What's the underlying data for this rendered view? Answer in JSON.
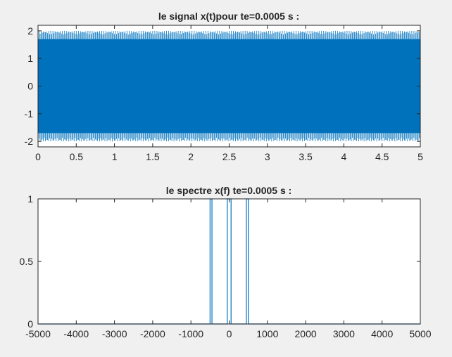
{
  "chart_data": [
    {
      "type": "line",
      "title": "le signal x(t)pour te=0.0005 s :",
      "xlabel": "",
      "ylabel": "",
      "xlim": [
        0,
        5
      ],
      "ylim": [
        -2.2,
        2.2
      ],
      "xticks": [
        "0",
        "0.5",
        "1",
        "1.5",
        "2",
        "2.5",
        "3",
        "3.5",
        "4",
        "4.5",
        "5"
      ],
      "yticks": [
        "-2",
        "-1",
        "0",
        "1",
        "2"
      ],
      "grid": false,
      "line_color": "#0072bd",
      "series": [
        {
          "note_values": "dense oscillation filling the band",
          "envelope_max": 2.0,
          "envelope_min": -2.0,
          "inner_max": 1.7,
          "inner_min": -1.7
        }
      ]
    },
    {
      "type": "line",
      "title": "le spectre x(f) te=0.0005 s :",
      "xlabel": "",
      "ylabel": "",
      "xlim": [
        -5000,
        5000
      ],
      "ylim": [
        0,
        1
      ],
      "xticks": [
        "-5000",
        "-4000",
        "-3000",
        "-2000",
        "-1000",
        "0",
        "1000",
        "2000",
        "3000",
        "4000",
        "5000"
      ],
      "yticks": [
        "0",
        "0.5",
        "1"
      ],
      "grid": false,
      "line_color": "#0072bd",
      "series": [
        {
          "x": [
            -5000,
            -500,
            -500,
            -450,
            -450,
            -50,
            -50,
            50,
            50,
            450,
            450,
            500,
            500,
            5000
          ],
          "y": [
            0,
            0,
            1,
            1,
            0,
            0,
            1,
            1,
            0,
            0,
            1,
            1,
            0,
            0
          ]
        }
      ]
    }
  ]
}
